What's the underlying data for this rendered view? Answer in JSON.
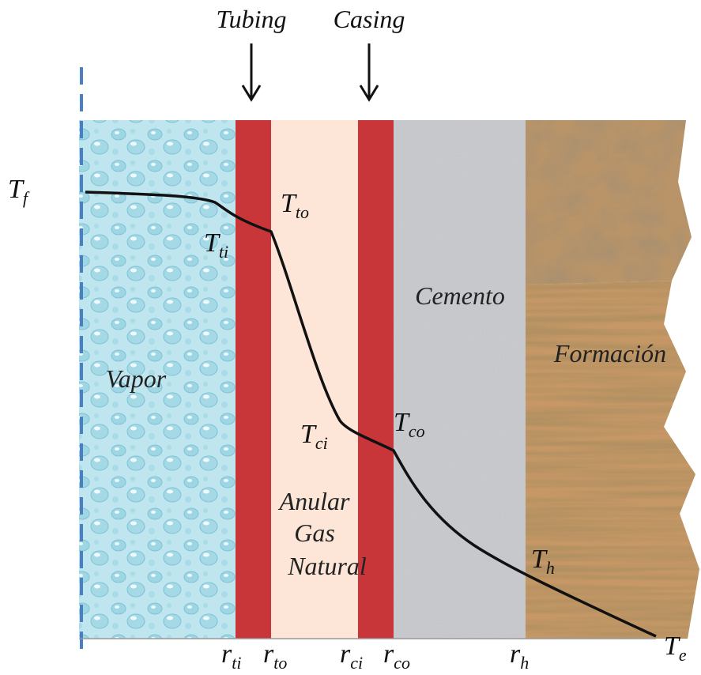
{
  "header": {
    "tubing": "Tubing",
    "casing": "Casing"
  },
  "regions": {
    "vapor": "Vapor",
    "annulus": [
      "Anular",
      "Gas",
      "Natural"
    ],
    "cement": "Cemento",
    "formation": "Formación"
  },
  "temperatures": [
    {
      "symbol": "T",
      "sub": "f"
    },
    {
      "symbol": "T",
      "sub": "ti"
    },
    {
      "symbol": "T",
      "sub": "to"
    },
    {
      "symbol": "T",
      "sub": "ci"
    },
    {
      "symbol": "T",
      "sub": "co"
    },
    {
      "symbol": "T",
      "sub": "h"
    },
    {
      "symbol": "T",
      "sub": "e"
    }
  ],
  "radii": [
    {
      "symbol": "r",
      "sub": "ti"
    },
    {
      "symbol": "r",
      "sub": "to"
    },
    {
      "symbol": "r",
      "sub": "ci"
    },
    {
      "symbol": "r",
      "sub": "co"
    },
    {
      "symbol": "r",
      "sub": "h"
    }
  ]
}
